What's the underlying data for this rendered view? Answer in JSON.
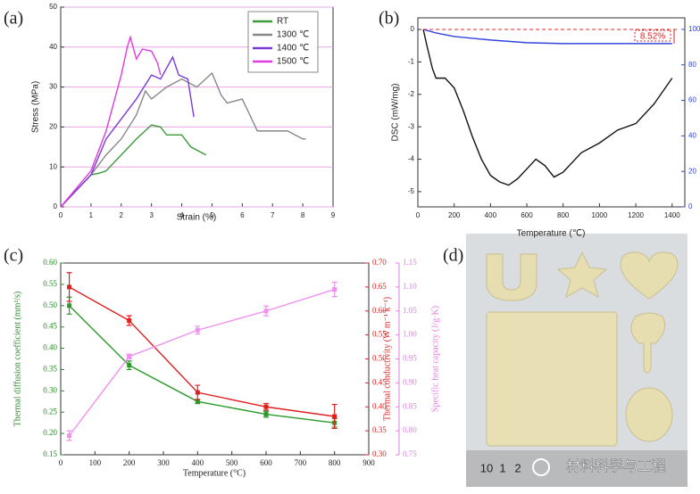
{
  "chart_data": [
    {
      "type": "line",
      "panel_label": "(a)",
      "x_label": "Strain (%)",
      "y_label": "Stress (MPa)",
      "xlim": [
        0,
        9
      ],
      "ylim": [
        0,
        50
      ],
      "xticks": [
        0,
        1,
        2,
        3,
        4,
        5,
        6,
        7,
        8,
        9
      ],
      "yticks": [
        0,
        10,
        20,
        30,
        40,
        50
      ],
      "grid": true,
      "grid_color": "#e8a8e4",
      "legend": "top-right",
      "series": [
        {
          "name": "RT",
          "color": "#3a9a3a",
          "x": [
            0,
            0.5,
            1,
            1.3,
            1.5,
            2,
            2.5,
            3,
            3.3,
            3.5,
            4,
            4.3,
            4.8
          ],
          "values": [
            0,
            4,
            8,
            8.5,
            9,
            13,
            17,
            20.5,
            20,
            18,
            18,
            15,
            13
          ]
        },
        {
          "name": "1300 ℃",
          "color": "#888888",
          "x": [
            0,
            1,
            1.5,
            2,
            2.5,
            2.8,
            3,
            3.5,
            4,
            4.5,
            5,
            5.3,
            5.5,
            6,
            6.5,
            7,
            7.5,
            8,
            8.1
          ],
          "values": [
            0,
            8,
            13,
            17,
            23,
            29,
            27,
            30,
            32,
            30,
            33.5,
            28,
            26,
            27,
            19,
            19,
            19,
            17,
            17
          ]
        },
        {
          "name": "1400 ℃",
          "color": "#7a3ad8",
          "x": [
            0,
            1,
            1.5,
            2,
            2.5,
            3,
            3.3,
            3.7,
            3.9,
            4.2,
            4.4
          ],
          "values": [
            0,
            8,
            17,
            22,
            27,
            33,
            32,
            37.5,
            33,
            32,
            22.5
          ]
        },
        {
          "name": "1500 ℃",
          "color": "#e03ae0",
          "x": [
            0,
            1,
            1.5,
            2,
            2.2,
            2.3,
            2.5,
            2.7,
            3,
            3.2,
            3.3
          ],
          "values": [
            0,
            9,
            19,
            33,
            40,
            42.5,
            37,
            39.5,
            39,
            36,
            33
          ]
        }
      ]
    },
    {
      "type": "line",
      "panel_label": "(b)",
      "x_label": "Temperature (℃)",
      "y_label": "DSC (mW/mg)",
      "annotation": "8.52%",
      "xlim": [
        0,
        1470
      ],
      "ylim": [
        -5.47,
        0.36
      ],
      "y2lim": [
        0,
        106.5
      ],
      "xticks": [
        0,
        200,
        400,
        600,
        800,
        1000,
        1200,
        1400
      ],
      "yticks": [
        0,
        -1,
        -2,
        -3,
        -4,
        -5
      ],
      "y2ticks": [
        0,
        20,
        40,
        60,
        80,
        100
      ],
      "y2_color": "#3344cc",
      "series": [
        {
          "color": "#111111",
          "x": [
            30,
            50,
            80,
            100,
            150,
            200,
            250,
            300,
            350,
            400,
            450,
            500,
            550,
            600,
            650,
            700,
            750,
            800,
            900,
            1000,
            1100,
            1200,
            1300,
            1400
          ],
          "values": [
            0,
            -0.5,
            -1.2,
            -1.5,
            -1.5,
            -1.8,
            -2.5,
            -3.3,
            -4.0,
            -4.5,
            -4.7,
            -4.8,
            -4.6,
            -4.3,
            -4.0,
            -4.2,
            -4.55,
            -4.4,
            -3.8,
            -3.5,
            -3.1,
            -2.9,
            -2.3,
            -1.5
          ]
        },
        {
          "color": "#3344dd",
          "axis": "y2",
          "x": [
            30,
            100,
            200,
            300,
            400,
            600,
            800,
            1000,
            1200,
            1400
          ],
          "values": [
            100,
            98,
            96,
            95,
            94,
            92.5,
            92,
            92,
            92,
            92
          ]
        }
      ]
    },
    {
      "type": "line",
      "panel_label": "(c)",
      "x_label": "Temperature (°C)",
      "y_label": "Thermal diffusion coefficient (mm²/s)",
      "y2_label": "Thermal conductivity (W m⁻¹ k⁻¹)",
      "y3_label": "Specific heat capacity (J/g·K)",
      "xlim": [
        0,
        900
      ],
      "ylim": [
        0.15,
        0.6
      ],
      "y2lim": [
        0.3,
        0.7
      ],
      "y3lim": [
        0.75,
        1.15
      ],
      "xticks": [
        0,
        100,
        200,
        300,
        400,
        500,
        600,
        700,
        800,
        900
      ],
      "yticks": [
        0.15,
        {
          "value": 0.2,
          "label": "0.20"
        },
        0.25,
        {
          "value": 0.3,
          "label": "0.30"
        },
        0.35,
        {
          "value": 0.4,
          "label": "0.40"
        },
        0.45,
        {
          "value": 0.5,
          "label": "0.50"
        },
        0.55,
        {
          "value": 0.6,
          "label": "0.60"
        }
      ],
      "y2ticks": [
        {
          "value": 0.3,
          "label": "0.30"
        },
        0.35,
        {
          "value": 0.4,
          "label": "0.40"
        },
        0.45,
        {
          "value": 0.5,
          "label": "0.50"
        },
        0.55,
        {
          "value": 0.6,
          "label": "0.60"
        },
        0.65,
        {
          "value": 0.7,
          "label": "0.70"
        }
      ],
      "y3ticks": [
        0.75,
        {
          "value": 0.8,
          "label": "0.80"
        },
        0.85,
        {
          "value": 0.9,
          "label": "0.90"
        },
        0.95,
        {
          "value": 1,
          "label": "1.00"
        },
        1.05,
        {
          "value": 1.1,
          "label": "1.10"
        },
        1.15
      ],
      "y_color": "#2a8a2a",
      "y2_color": "#e02020",
      "y3_color": "#e080e0",
      "markers": true,
      "series": [
        {
          "color": "#2a9a2a",
          "x": [
            25,
            200,
            400,
            600,
            800
          ],
          "values": [
            0.5,
            0.36,
            0.275,
            0.245,
            0.225
          ],
          "errors": [
            0.02,
            0.01,
            0.005,
            0.007,
            0.01
          ]
        },
        {
          "color": "#e02020",
          "axis": "y2",
          "x": [
            25,
            200,
            400,
            600,
            800
          ],
          "values": [
            0.65,
            0.58,
            0.43,
            0.4,
            0.38
          ],
          "errors": [
            0.03,
            0.01,
            0.015,
            0.007,
            0.025
          ]
        },
        {
          "color": "#f090f0",
          "axis": "y3",
          "x": [
            25,
            200,
            400,
            600,
            800
          ],
          "values": [
            0.79,
            0.955,
            1.01,
            1.05,
            1.095
          ],
          "errors": [
            0.01,
            0.005,
            0.008,
            0.01,
            0.015
          ]
        }
      ]
    }
  ],
  "photo": {
    "panel_label": "(d)",
    "ruler_labels": [
      "10",
      "1",
      "2"
    ],
    "watermark": "材料科学与工程"
  }
}
